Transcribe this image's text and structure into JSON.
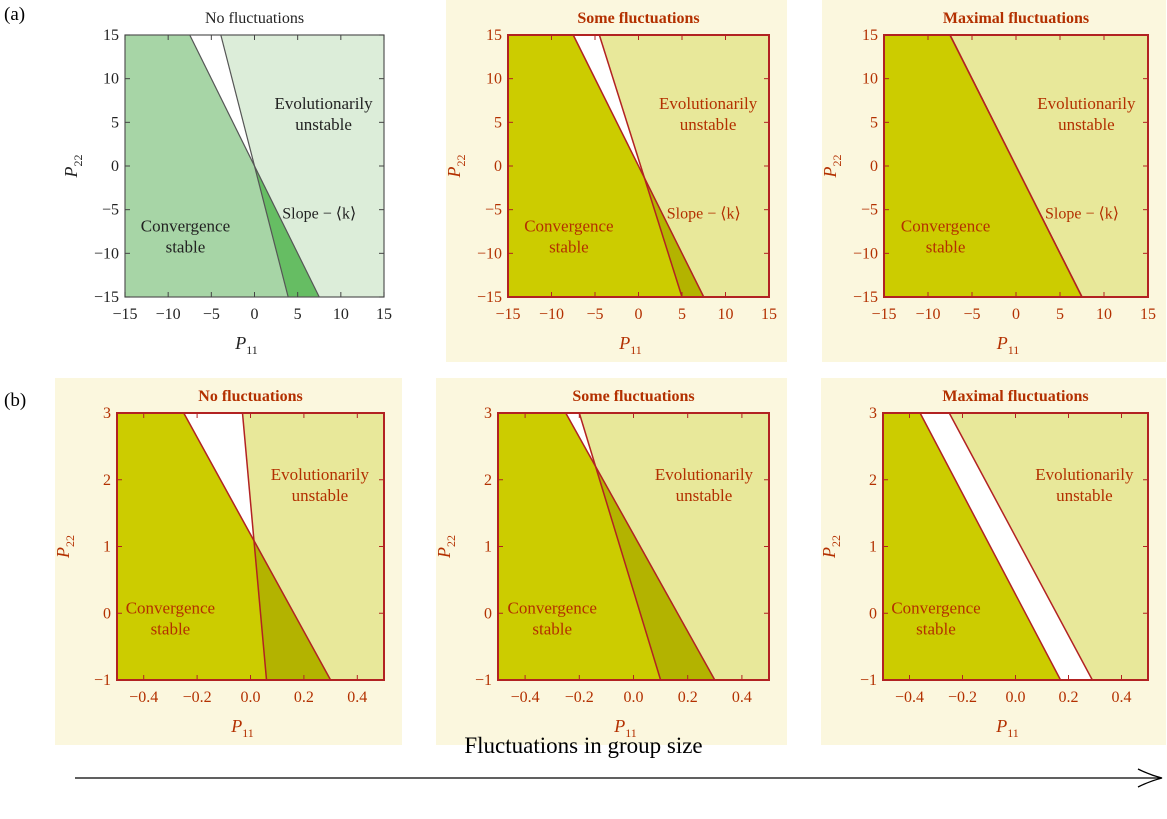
{
  "row_labels": [
    "(a)",
    "(b)"
  ],
  "footer": {
    "label": "Fluctuations in group size"
  },
  "chart_data": [
    {
      "type": "area",
      "panel": "a1",
      "theme": "green",
      "title": "No fluctuations",
      "xlabel": "P11",
      "ylabel": "P22",
      "xlim": [
        -15,
        15
      ],
      "ylim": [
        -15,
        15
      ],
      "xticks": [
        -15,
        -10,
        -5,
        0,
        5,
        10,
        15
      ],
      "yticks": [
        15,
        10,
        5,
        0,
        -5,
        -10,
        -15
      ],
      "xtick_labels": [
        "−15",
        "−10",
        "−5",
        "0",
        "5",
        "10",
        "15"
      ],
      "ytick_labels": [
        "15",
        "10",
        "5",
        "0",
        "−5",
        "−10",
        "−15"
      ],
      "boundaries": {
        "convergence_line": [
          [
            -7.5,
            15
          ],
          [
            7.5,
            -15
          ]
        ],
        "evolutionary_line": [
          [
            -3.9,
            15
          ],
          [
            3.9,
            -15
          ]
        ]
      },
      "regions": [
        {
          "name": "Convergence stable",
          "label": [
            "Convergence",
            "stable"
          ],
          "label_at": [
            -8,
            -7.5
          ],
          "color": "#a7d5a6"
        },
        {
          "name": "Evolutionarily unstable",
          "label": [
            "Evolutionarily",
            "unstable"
          ],
          "label_at": [
            8,
            6.5
          ],
          "color": "#dcedd9"
        },
        {
          "name": "overlap",
          "color": "#66bd63"
        }
      ],
      "annotation": {
        "text": "Slope − ⟨k⟩",
        "at": [
          7.5,
          -6
        ]
      }
    },
    {
      "type": "area",
      "panel": "a2",
      "theme": "olive",
      "title": "Some fluctuations",
      "xlabel": "P11",
      "ylabel": "P22",
      "xlim": [
        -15,
        15
      ],
      "ylim": [
        -15,
        15
      ],
      "xticks": [
        -15,
        -10,
        -5,
        0,
        5,
        10,
        15
      ],
      "yticks": [
        15,
        10,
        5,
        0,
        -5,
        -10,
        -15
      ],
      "xtick_labels": [
        "−15",
        "−10",
        "−5",
        "0",
        "5",
        "10",
        "15"
      ],
      "ytick_labels": [
        "15",
        "10",
        "5",
        "0",
        "−5",
        "−10",
        "−15"
      ],
      "boundaries": {
        "convergence_line": [
          [
            -7.5,
            15
          ],
          [
            7.5,
            -15
          ]
        ],
        "evolutionary_line": [
          [
            -4.5,
            15
          ],
          [
            5,
            -15
          ]
        ]
      },
      "regions": [
        {
          "name": "Convergence stable",
          "label": [
            "Convergence",
            "stable"
          ],
          "label_at": [
            -8,
            -7.5
          ],
          "color": "#cccc00"
        },
        {
          "name": "Evolutionarily unstable",
          "label": [
            "Evolutionarily",
            "unstable"
          ],
          "label_at": [
            8,
            6.5
          ],
          "color": "#e8e89a"
        },
        {
          "name": "overlap",
          "color": "#b3b300"
        }
      ],
      "annotation": {
        "text": "Slope − ⟨k⟩",
        "at": [
          7.5,
          -6
        ]
      }
    },
    {
      "type": "area",
      "panel": "a3",
      "theme": "olive",
      "title": "Maximal fluctuations",
      "xlabel": "P11",
      "ylabel": "P22",
      "xlim": [
        -15,
        15
      ],
      "ylim": [
        -15,
        15
      ],
      "xticks": [
        -15,
        -10,
        -5,
        0,
        5,
        10,
        15
      ],
      "yticks": [
        15,
        10,
        5,
        0,
        -5,
        -10,
        -15
      ],
      "xtick_labels": [
        "−15",
        "−10",
        "−5",
        "0",
        "5",
        "10",
        "15"
      ],
      "ytick_labels": [
        "15",
        "10",
        "5",
        "0",
        "−5",
        "−10",
        "−15"
      ],
      "boundaries": {
        "convergence_line": [
          [
            -7.5,
            15
          ],
          [
            7.5,
            -15
          ]
        ],
        "evolutionary_line": [
          [
            -7.5,
            15
          ],
          [
            7.5,
            -15
          ]
        ]
      },
      "regions": [
        {
          "name": "Convergence stable",
          "label": [
            "Convergence",
            "stable"
          ],
          "label_at": [
            -8,
            -7.5
          ],
          "color": "#cccc00"
        },
        {
          "name": "Evolutionarily unstable",
          "label": [
            "Evolutionarily",
            "unstable"
          ],
          "label_at": [
            8,
            6.5
          ],
          "color": "#e8e89a"
        },
        {
          "name": "overlap",
          "color": "#b3b300"
        }
      ],
      "annotation": {
        "text": "Slope − ⟨k⟩",
        "at": [
          7.5,
          -6
        ]
      }
    },
    {
      "type": "area",
      "panel": "b1",
      "theme": "olive",
      "title": "No fluctuations",
      "xlabel": "P11",
      "ylabel": "P22",
      "xlim": [
        -0.5,
        0.5
      ],
      "ylim": [
        -1,
        3
      ],
      "xticks": [
        -0.4,
        -0.2,
        0.0,
        0.2,
        0.4
      ],
      "yticks": [
        3,
        2,
        1,
        0,
        -1
      ],
      "xtick_labels": [
        "−0.4",
        "−0.2",
        "0.0",
        "0.2",
        "0.4"
      ],
      "ytick_labels": [
        "3",
        "2",
        "1",
        "0",
        "−1"
      ],
      "boundaries": {
        "convergence_line": [
          [
            -0.25,
            3
          ],
          [
            0.3,
            -1
          ]
        ],
        "evolutionary_line": [
          [
            -0.03,
            3
          ],
          [
            0.06,
            -1
          ]
        ]
      },
      "regions": [
        {
          "name": "Convergence stable",
          "label": [
            "Convergence",
            "stable"
          ],
          "label_at": [
            -0.3,
            0.0
          ],
          "color": "#cccc00"
        },
        {
          "name": "Evolutionarily unstable",
          "label": [
            "Evolutionarily",
            "unstable"
          ],
          "label_at": [
            0.26,
            2.0
          ],
          "color": "#e8e89a"
        },
        {
          "name": "overlap",
          "color": "#b3b300"
        }
      ]
    },
    {
      "type": "area",
      "panel": "b2",
      "theme": "olive",
      "title": "Some fluctuations",
      "xlabel": "P11",
      "ylabel": "P22",
      "xlim": [
        -0.5,
        0.5
      ],
      "ylim": [
        -1,
        3
      ],
      "xticks": [
        -0.4,
        -0.2,
        0.0,
        0.2,
        0.4
      ],
      "yticks": [
        3,
        2,
        1,
        0,
        -1
      ],
      "xtick_labels": [
        "−0.4",
        "−0.2",
        "0.0",
        "0.2",
        "0.4"
      ],
      "ytick_labels": [
        "3",
        "2",
        "1",
        "0",
        "−1"
      ],
      "boundaries": {
        "convergence_line": [
          [
            -0.25,
            3
          ],
          [
            0.3,
            -1
          ]
        ],
        "evolutionary_line": [
          [
            -0.2,
            3
          ],
          [
            0.1,
            -1
          ]
        ]
      },
      "regions": [
        {
          "name": "Convergence stable",
          "label": [
            "Convergence",
            "stable"
          ],
          "label_at": [
            -0.3,
            0.0
          ],
          "color": "#cccc00"
        },
        {
          "name": "Evolutionarily unstable",
          "label": [
            "Evolutionarily",
            "unstable"
          ],
          "label_at": [
            0.26,
            2.0
          ],
          "color": "#e8e89a"
        },
        {
          "name": "overlap",
          "color": "#b3b300"
        }
      ]
    },
    {
      "type": "area",
      "panel": "b3",
      "theme": "olive",
      "title": "Maximal fluctuations",
      "xlabel": "P11",
      "ylabel": "P22",
      "xlim": [
        -0.5,
        0.5
      ],
      "ylim": [
        -1,
        3
      ],
      "xticks": [
        -0.4,
        -0.2,
        0.0,
        0.2,
        0.4
      ],
      "yticks": [
        3,
        2,
        1,
        0,
        -1
      ],
      "xtick_labels": [
        "−0.4",
        "−0.2",
        "0.0",
        "0.2",
        "0.4"
      ],
      "ytick_labels": [
        "3",
        "2",
        "1",
        "0",
        "−1"
      ],
      "boundaries": {
        "convergence_line": [
          [
            -0.36,
            3
          ],
          [
            0.17,
            -1
          ]
        ],
        "evolutionary_line": [
          [
            -0.25,
            3
          ],
          [
            0.29,
            -1
          ]
        ]
      },
      "regions": [
        {
          "name": "Convergence stable",
          "label": [
            "Convergence",
            "stable"
          ],
          "label_at": [
            -0.3,
            0.0
          ],
          "color": "#cccc00"
        },
        {
          "name": "Evolutionarily unstable",
          "label": [
            "Evolutionarily",
            "unstable"
          ],
          "label_at": [
            0.26,
            2.0
          ],
          "color": "#e8e89a"
        },
        {
          "name": "overlap",
          "color": "#b3b300"
        }
      ]
    }
  ]
}
